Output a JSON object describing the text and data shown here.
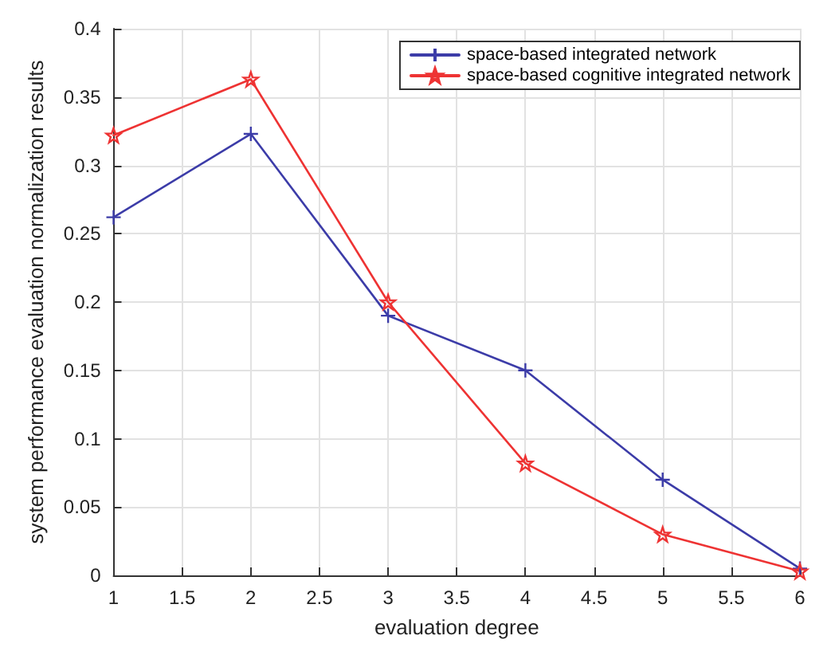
{
  "chart_data": {
    "type": "line",
    "xlabel": "evaluation degree",
    "ylabel": "system performance evaluation normalization results",
    "x": [
      1,
      2,
      3,
      4,
      5,
      6
    ],
    "series": [
      {
        "name": "space-based integrated network",
        "color": "#3c3ca8",
        "marker": "cross",
        "values": [
          0.262,
          0.323,
          0.19,
          0.15,
          0.07,
          0.005
        ]
      },
      {
        "name": "space-based cognitive integrated network",
        "color": "#ee3333",
        "marker": "star",
        "values": [
          0.322,
          0.363,
          0.2,
          0.082,
          0.03,
          0.003
        ]
      }
    ],
    "xlim": [
      1,
      6
    ],
    "xticks": [
      1,
      1.5,
      2,
      2.5,
      3,
      3.5,
      4,
      4.5,
      5,
      5.5,
      6
    ],
    "ylim": [
      0,
      0.4
    ],
    "yticks": [
      0,
      0.05,
      0.1,
      0.15,
      0.2,
      0.25,
      0.3,
      0.35,
      0.4
    ],
    "grid": true,
    "legend": "top right",
    "line_style": "solid"
  }
}
